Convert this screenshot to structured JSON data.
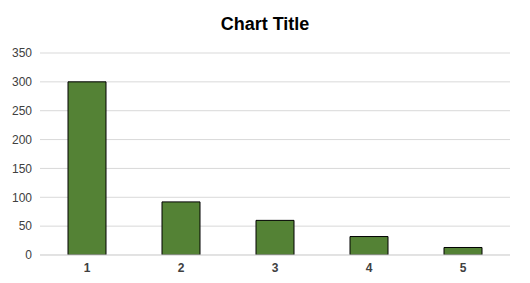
{
  "chart_data": {
    "type": "bar",
    "title": "Chart Title",
    "categories": [
      "1",
      "2",
      "3",
      "4",
      "5"
    ],
    "values": [
      300,
      92,
      60,
      32,
      13
    ],
    "color": "#548235",
    "ylim": [
      0,
      350
    ],
    "yticks": [
      0,
      50,
      100,
      150,
      200,
      250,
      300,
      350
    ],
    "grid": true
  }
}
